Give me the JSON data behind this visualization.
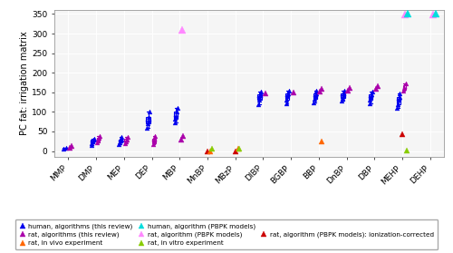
{
  "compounds": [
    "MMP",
    "DMP",
    "MEP",
    "DEP",
    "MBP",
    "MnBP",
    "MBzP",
    "DIBP",
    "BGBP",
    "BBP",
    "DnBP",
    "DBP",
    "MEHP",
    "DEHP"
  ],
  "ylim": [
    -15,
    360
  ],
  "yticks": [
    0,
    50,
    100,
    150,
    200,
    250,
    300,
    350
  ],
  "ylabel": "PC fat: irrigation matrix",
  "colors": {
    "human_algo": "#0000ee",
    "human_pbpk": "#00dddd",
    "rat_algo": "#aa00aa",
    "rat_pbpk": "#ff88ff",
    "rat_pbpk_ion": "#cc0000",
    "rat_vivo": "#ff6600",
    "rat_vitro": "#88cc00"
  },
  "human_algo": {
    "MMP": [
      5,
      8
    ],
    "DMP": [
      15,
      20,
      25,
      28,
      32
    ],
    "MEP": [
      18,
      22,
      26,
      30,
      35
    ],
    "DEP": [
      58,
      70,
      78,
      88,
      100
    ],
    "MBP": [
      72,
      82,
      90,
      100,
      110
    ],
    "MnBP": [],
    "MBzP": [],
    "DIBP": [
      120,
      130,
      138,
      145,
      152
    ],
    "BGBP": [
      122,
      132,
      140,
      148,
      155
    ],
    "BBP": [
      125,
      133,
      140,
      148,
      155
    ],
    "DnBP": [
      128,
      135,
      142,
      148,
      155
    ],
    "DBP": [
      122,
      132,
      138,
      146,
      152
    ],
    "MEHP": [
      110,
      120,
      130,
      138,
      148
    ],
    "DEHP": []
  },
  "rat_algo": {
    "MMP": [
      8,
      12
    ],
    "DMP": [
      22,
      28,
      33,
      38
    ],
    "MEP": [
      20,
      25,
      30,
      36
    ],
    "DEP": [
      18,
      24,
      30,
      38
    ],
    "MBP": [
      30,
      38
    ],
    "MnBP": [],
    "MBzP": [],
    "DIBP": [
      148
    ],
    "BGBP": [
      150
    ],
    "BBP": [
      152,
      158
    ],
    "DnBP": [
      155,
      162
    ],
    "DBP": [
      158,
      165
    ],
    "MEHP": [
      155,
      162,
      172
    ],
    "DEHP": []
  },
  "rat_pbpk": {
    "MBP": [
      310
    ],
    "MEHP": [
      348
    ],
    "DEHP": [
      348
    ]
  },
  "human_pbpk": {
    "MEHP": [
      350
    ],
    "DEHP": [
      350
    ]
  },
  "rat_pbpk_ion": {
    "MnBP": [
      -2
    ],
    "MBzP": [
      -2
    ],
    "MEHP": [
      42
    ]
  },
  "rat_vivo": {
    "MnBP": [
      -2
    ],
    "MBzP": [
      5
    ],
    "BBP": [
      25
    ]
  },
  "rat_vitro": {
    "MnBP": [
      5
    ],
    "MBzP": [
      5
    ],
    "MEHP": [
      2
    ]
  },
  "legend": [
    {
      "label": "human, algorithms (this review)",
      "color": "#0000ee",
      "filled": true
    },
    {
      "label": "human, algorithm (PBPK models)",
      "color": "#00dddd",
      "filled": true
    },
    {
      "label": "rat, algorithms (this review)",
      "color": "#aa00aa",
      "filled": true
    },
    {
      "label": "rat, algorithm (PBPK models)",
      "color": "#ff88ff",
      "filled": true
    },
    {
      "label": "rat, algorithm (PBPK models): ionization-corrected",
      "color": "#cc0000",
      "filled": true
    },
    {
      "label": "rat, in vivo experiment",
      "color": "#ff6600",
      "filled": true
    },
    {
      "label": "rat, in vitro experiment",
      "color": "#88cc00",
      "filled": true
    }
  ]
}
